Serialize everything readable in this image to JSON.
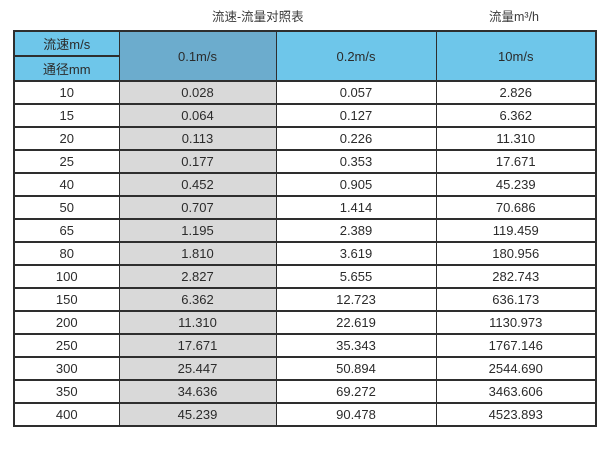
{
  "header": {
    "table_title": "流速-流量对照表",
    "unit_title": "流量m³/h"
  },
  "colors": {
    "header_light_blue": "#6ec6ea",
    "header_dark_blue": "#6caccd",
    "shaded_column_gray": "#d9d9d9",
    "border": "#2e2e2e",
    "text": "#2b2b2b"
  },
  "chart_data": {
    "type": "table",
    "title": "流速-流量对照表",
    "unit_label": "流量m³/h",
    "col_header_label": "流速m/s",
    "row_header_label": "通径mm",
    "columns": [
      "0.1m/s",
      "0.2m/s",
      "10m/s"
    ],
    "rows": [
      {
        "diameter_mm": "10",
        "values": [
          "0.028",
          "0.057",
          "2.826"
        ]
      },
      {
        "diameter_mm": "15",
        "values": [
          "0.064",
          "0.127",
          "6.362"
        ]
      },
      {
        "diameter_mm": "20",
        "values": [
          "0.113",
          "0.226",
          "11.310"
        ]
      },
      {
        "diameter_mm": "25",
        "values": [
          "0.177",
          "0.353",
          "17.671"
        ]
      },
      {
        "diameter_mm": "40",
        "values": [
          "0.452",
          "0.905",
          "45.239"
        ]
      },
      {
        "diameter_mm": "50",
        "values": [
          "0.707",
          "1.414",
          "70.686"
        ]
      },
      {
        "diameter_mm": "65",
        "values": [
          "1.195",
          "2.389",
          "119.459"
        ]
      },
      {
        "diameter_mm": "80",
        "values": [
          "1.810",
          "3.619",
          "180.956"
        ]
      },
      {
        "diameter_mm": "100",
        "values": [
          "2.827",
          "5.655",
          "282.743"
        ]
      },
      {
        "diameter_mm": "150",
        "values": [
          "6.362",
          "12.723",
          "636.173"
        ]
      },
      {
        "diameter_mm": "200",
        "values": [
          "11.310",
          "22.619",
          "1130.973"
        ]
      },
      {
        "diameter_mm": "250",
        "values": [
          "17.671",
          "35.343",
          "1767.146"
        ]
      },
      {
        "diameter_mm": "300",
        "values": [
          "25.447",
          "50.894",
          "2544.690"
        ]
      },
      {
        "diameter_mm": "350",
        "values": [
          "34.636",
          "69.272",
          "3463.606"
        ]
      },
      {
        "diameter_mm": "400",
        "values": [
          "45.239",
          "90.478",
          "4523.893"
        ]
      }
    ]
  }
}
